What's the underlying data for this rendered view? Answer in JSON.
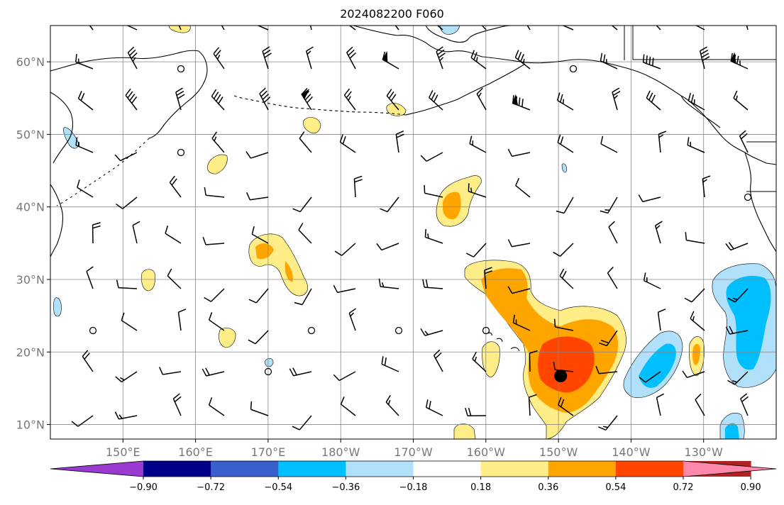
{
  "title": "2024082200 F060",
  "map": {
    "lon_range": [
      140,
      240
    ],
    "lat_range": [
      8,
      65
    ],
    "lat_ticks": [
      {
        "value": 10,
        "label": "10°N"
      },
      {
        "value": 20,
        "label": "20°N"
      },
      {
        "value": 30,
        "label": "30°N"
      },
      {
        "value": 40,
        "label": "40°N"
      },
      {
        "value": 50,
        "label": "50°N"
      },
      {
        "value": 60,
        "label": "60°N"
      }
    ],
    "lon_ticks": [
      {
        "value": 150,
        "label": "150°E"
      },
      {
        "value": 160,
        "label": "160°E"
      },
      {
        "value": 170,
        "label": "170°E"
      },
      {
        "value": 180,
        "label": "180°W"
      },
      {
        "value": 190,
        "label": "170°W"
      },
      {
        "value": 200,
        "label": "160°W"
      },
      {
        "value": 210,
        "label": "150°W"
      },
      {
        "value": 220,
        "label": "140°W"
      },
      {
        "value": 230,
        "label": "130°W"
      }
    ],
    "grid": true,
    "storm_center": {
      "lon": 210.3,
      "lat": 16.7
    }
  },
  "colorbar": {
    "levels": [
      "−0.90",
      "−0.72",
      "−0.54",
      "−0.36",
      "−0.18",
      "0.18",
      "0.36",
      "0.54",
      "0.72",
      "0.90"
    ],
    "colors": [
      "#9a3ad1",
      "#00008b",
      "#3b5fcd",
      "#00bfff",
      "#b0e0fa",
      "#ffffff",
      "#ffee88",
      "#ffa500",
      "#ff4500",
      "#b22222",
      "#ff88aa"
    ]
  },
  "colors": {
    "pos1": "#ffee88",
    "pos2": "#ffa500",
    "pos3": "#ff4500",
    "neg1": "#b0e0fa",
    "neg2": "#00bfff"
  }
}
